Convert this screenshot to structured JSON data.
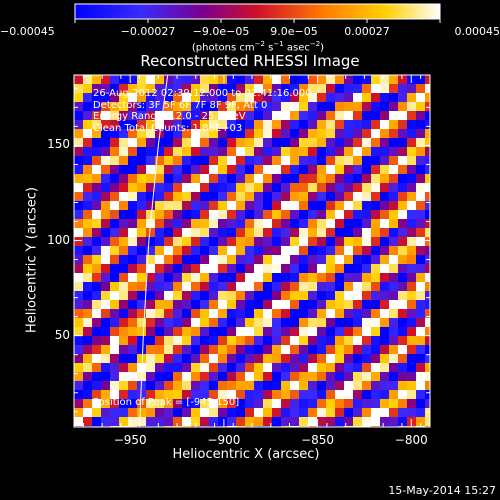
{
  "chart_data": {
    "type": "heatmap",
    "title": "Reconstructed RHESSI Image",
    "xlabel": "Heliocentric X (arcsec)",
    "ylabel": "Heliocentric Y (arcsec)",
    "xlim": [
      -980,
      -790
    ],
    "ylim": [
      2,
      187
    ],
    "xticks": [
      -950,
      -900,
      -850,
      -800
    ],
    "yticks": [
      50,
      100,
      150
    ],
    "xtick_labels": [
      "−950",
      "−900",
      "−850",
      "−800"
    ],
    "ytick_labels": [
      "50",
      "100",
      "150"
    ],
    "colormap": "blue-purple-red-orange-yellow-white",
    "colorbar": {
      "range": [
        -0.00045,
        0.00045
      ],
      "tick_values": [
        -0.00045,
        -0.00027,
        -9e-05,
        9e-05,
        0.00027,
        0.00045
      ],
      "tick_labels": [
        "−0.00045",
        "−0.00027",
        "−9.0e−05",
        "9.0e−05",
        "0.00027",
        "0.00045"
      ],
      "unit_parts": [
        "(photons cm",
        "−2",
        " s",
        "−1",
        " asec",
        "−2",
        ")"
      ]
    },
    "annotations": [
      "26-Aug-2012 02:39:12.000 to 02:41:16.000",
      "Detectors: 3F 5F 6F 7F 8F 9F, Att 0",
      "Energy Range: 12.0 - 25.0 keV",
      "Clean     Total Counts: 1.86E+03"
    ],
    "peak_label": "Position of Peak = [-945,150]",
    "limb_curve": [
      [
        -945,
        2
      ],
      [
        -943,
        50
      ],
      [
        -940,
        100
      ],
      [
        -935,
        150
      ],
      [
        -930,
        187
      ]
    ]
  },
  "footer": {
    "timestamp": "15-May-2014 15:27"
  }
}
